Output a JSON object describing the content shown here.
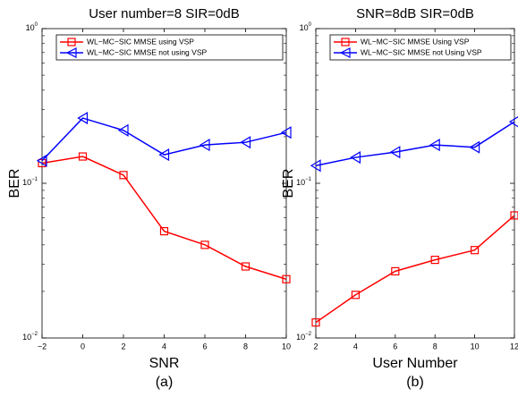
{
  "chart_data": [
    {
      "type": "line",
      "title": "User number=8 SIR=0dB",
      "x_label": "SNR",
      "y_label": "BER",
      "caption": "(a)",
      "x": [
        -2,
        0,
        2,
        4,
        6,
        8,
        10
      ],
      "xlim": [
        -2,
        10
      ],
      "xticks": [
        {
          "value": -2,
          "label": "−2"
        },
        0,
        2,
        4,
        6,
        8,
        10
      ],
      "ylim": [
        0.01,
        1
      ],
      "log_y": true,
      "yticks": [
        {
          "value": 0.01,
          "label": "10",
          "exponent": "−2"
        },
        {
          "value": 0.1,
          "label": "10",
          "exponent": "−1"
        },
        {
          "value": 1,
          "label": "10",
          "exponent": "0"
        }
      ],
      "legend": "upper left",
      "series": [
        {
          "name": "WL−MC−SIC MMSE using VSP",
          "color": "#ff0000",
          "marker": "square",
          "values": [
            0.135,
            0.149,
            0.113,
            0.049,
            0.04,
            0.029,
            0.024
          ]
        },
        {
          "name": "WL−MC−SIC MMSE not using VSP",
          "color": "#0000ff",
          "marker": "triangle-left",
          "values": [
            0.14,
            0.264,
            0.22,
            0.153,
            0.177,
            0.184,
            0.213
          ]
        }
      ]
    },
    {
      "type": "line",
      "title": "SNR=8dB SIR=0dB",
      "x_label": "User Number",
      "y_label": "BER",
      "caption": "(b)",
      "x": [
        2,
        4,
        6,
        8,
        10,
        12
      ],
      "xlim": [
        2,
        12
      ],
      "xticks": [
        2,
        4,
        6,
        8,
        10,
        12
      ],
      "ylim": [
        0.01,
        1
      ],
      "log_y": true,
      "yticks": [
        {
          "value": 0.01,
          "label": "10",
          "exponent": "−2"
        },
        {
          "value": 0.1,
          "label": "10",
          "exponent": "−1"
        },
        {
          "value": 1,
          "label": "10",
          "exponent": "0"
        }
      ],
      "legend": "upper left",
      "series": [
        {
          "name": "WL−MC−SIC MMSE Using VSP",
          "color": "#ff0000",
          "marker": "square",
          "values": [
            0.0126,
            0.019,
            0.027,
            0.032,
            0.037,
            0.062
          ]
        },
        {
          "name": "WL−MC−SIC MMSE not Using VSP",
          "color": "#0000ff",
          "marker": "triangle-left",
          "values": [
            0.13,
            0.147,
            0.159,
            0.177,
            0.171,
            0.25
          ]
        }
      ]
    }
  ]
}
